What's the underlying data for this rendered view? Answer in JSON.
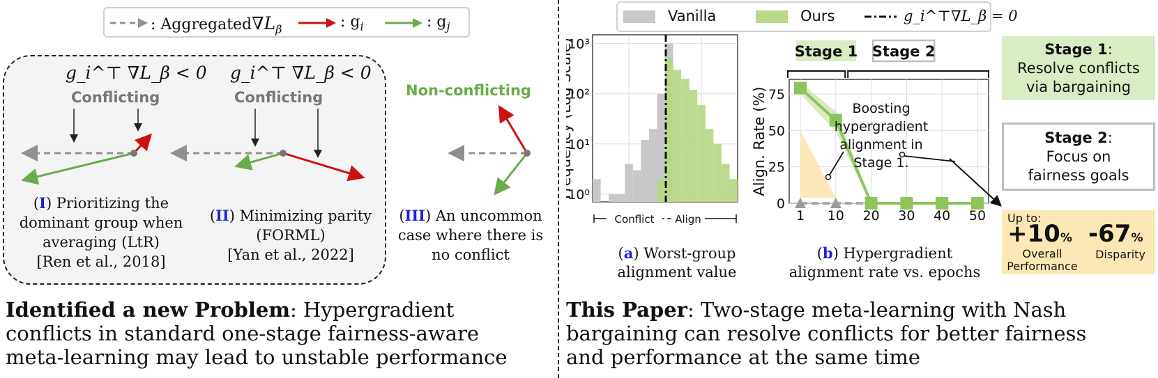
{
  "top_legend": {
    "aggregated_label": ": Aggregated",
    "aggregated_math": "∇L",
    "aggregated_sub": "β",
    "gi_label": ": g",
    "gi_sub": "i",
    "gj_label": ": g",
    "gj_sub": "j"
  },
  "colors": {
    "grey_arrow": "#909090",
    "red_arrow": "#cc1111",
    "green_arrow": "#6aab4a",
    "conflict_bg": "#f4f4f4",
    "stage1_bg": "#d9ecc4",
    "upto_bg": "#fbe8b4",
    "roman": "#1a23d8"
  },
  "cases": {
    "conflict_condition": "g_i^⊤ ∇L_β < 0",
    "conflict_label": "Conflicting",
    "nonconflict_label": "Non-conflicting",
    "case1": {
      "roman": "I",
      "text1": ") Prioritizing the",
      "text2": "dominant group when",
      "text3": "averaging (LtR)",
      "text4": "[Ren et al., 2018]"
    },
    "case2": {
      "roman": "II",
      "text1": ") Minimizing parity",
      "text2": "(FORML)",
      "text3": "[Yan et al., 2022]"
    },
    "case3": {
      "roman": "III",
      "text1": ") An uncommon",
      "text2": "case where there is",
      "text3": "no conflict"
    }
  },
  "bottom_left": {
    "bold": "Identified a new Problem",
    "rest1": ": Hypergradient",
    "line2": "conflicts in standard one-stage fairness-aware",
    "line3": "meta-learning may lead to unstable performance"
  },
  "bottom_right": {
    "bold": "This Paper",
    "rest1": ": Two-stage meta-learning with Nash",
    "line2": "bargaining can resolve conflicts for better fairness",
    "line3": "and performance at the same time"
  },
  "chart_legend": {
    "vanilla": "Vanilla",
    "ours": "Ours",
    "threshold": "g_i^⊤∇L_β = 0"
  },
  "chart_data": [
    {
      "type": "bar",
      "ylabel": "Frequency  (Log Scale)",
      "yscale": "log",
      "ylim": [
        0.7,
        1500
      ],
      "yticks": [
        "10⁰",
        "10¹",
        "10²",
        "10³"
      ],
      "xlabel_left": "Conflict",
      "xlabel_right": "Align",
      "caption_letter": "a",
      "caption1": ") Worst-group",
      "caption2": "alignment value",
      "bins_vanilla": [
        2,
        0,
        1,
        1,
        4,
        3,
        12,
        20,
        100,
        1000,
        0,
        0,
        0,
        0,
        0,
        0,
        0,
        0
      ],
      "bins_ours": [
        0,
        0,
        0,
        0,
        0,
        0,
        0,
        0,
        2,
        500,
        300,
        200,
        120,
        60,
        20,
        10,
        4,
        2
      ]
    },
    {
      "type": "line",
      "ylabel": "Align. Rate (%)",
      "ylim": [
        0,
        85
      ],
      "yticks": [
        0,
        25,
        50,
        75
      ],
      "categories": [
        "1",
        "10",
        "20",
        "30",
        "40",
        "50"
      ],
      "series": [
        {
          "name": "Ours",
          "values": [
            79,
            57,
            0,
            0,
            0,
            0
          ]
        },
        {
          "name": "Vanilla",
          "values": [
            0,
            0,
            0,
            0,
            0,
            0
          ]
        }
      ],
      "stage1_label": "Stage 1",
      "stage2_label": "Stage 2",
      "annotation": [
        "Boosting",
        "hypergradient",
        "alignment in",
        "Stage 1."
      ],
      "caption_letter": "b",
      "caption1": ") Hypergradient",
      "caption2": "alignment rate vs. epochs"
    }
  ],
  "stage_boxes": {
    "stage1_title": "Stage 1",
    "stage1_line1": "Resolve conflicts",
    "stage1_line2": "via bargaining",
    "stage2_title": "Stage 2",
    "stage2_line1": "Focus on",
    "stage2_line2": "fairness goals"
  },
  "upto": {
    "label": "Up to:",
    "perf_value": "+10",
    "perf_unit": "%",
    "perf_label1": "Overall",
    "perf_label2": "Performance",
    "disp_value": "-67",
    "disp_unit": "%",
    "disp_label": "Disparity"
  }
}
